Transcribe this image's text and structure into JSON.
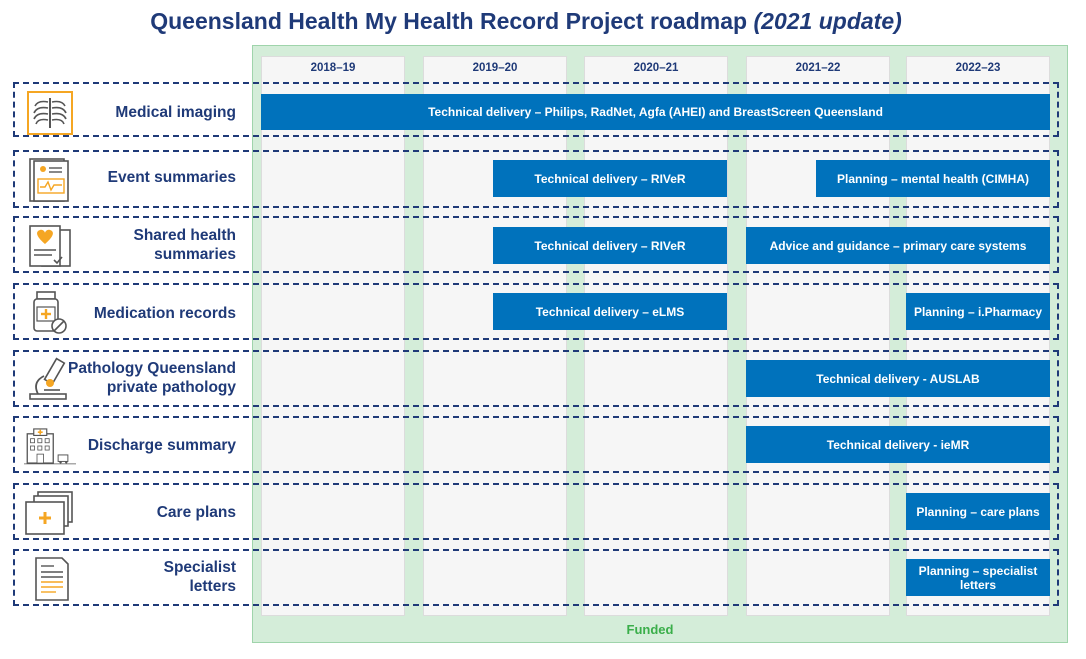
{
  "title": {
    "main": "Queensland Health My Health Record Project roadmap",
    "sub": "(2021 update)"
  },
  "years": [
    "2018–19",
    "2019–20",
    "2020–21",
    "2021–22",
    "2022–23"
  ],
  "funded_label": "Funded",
  "rows": [
    {
      "label": "Medical imaging",
      "icon": "xray-icon",
      "bars": [
        {
          "text": "Technical delivery – Philips, RadNet, Agfa (AHEI) and BreastScreen Queensland"
        }
      ]
    },
    {
      "label": "Event summaries",
      "icon": "document-chart-icon",
      "bars": [
        {
          "text": "Technical delivery – RIVeR"
        },
        {
          "text": "Planning – mental health (CIMHA)"
        }
      ]
    },
    {
      "label": "Shared health summaries",
      "icon": "heart-document-icon",
      "bars": [
        {
          "text": "Technical delivery – RIVeR"
        },
        {
          "text": "Advice and guidance – primary care systems"
        }
      ]
    },
    {
      "label": "Medication records",
      "icon": "medicine-bottle-icon",
      "bars": [
        {
          "text": "Technical delivery – eLMS"
        },
        {
          "text": "Planning – i.Pharmacy"
        }
      ]
    },
    {
      "label": "Pathology Queensland private pathology",
      "icon": "microscope-icon",
      "bars": [
        {
          "text": "Technical delivery - AUSLAB"
        }
      ]
    },
    {
      "label": "Discharge summary",
      "icon": "hospital-icon",
      "bars": [
        {
          "text": "Technical delivery - ieMR"
        }
      ]
    },
    {
      "label": "Care plans",
      "icon": "care-plan-icon",
      "bars": [
        {
          "text": "Planning – care plans"
        }
      ]
    },
    {
      "label": "Specialist letters",
      "icon": "letter-icon",
      "bars": [
        {
          "text": "Planning – specialist letters"
        }
      ]
    }
  ],
  "colors": {
    "navy": "#1f3a78",
    "bar_blue": "#0072bc",
    "funded_green": "#d4edd9",
    "icon_orange": "#f5a623"
  }
}
